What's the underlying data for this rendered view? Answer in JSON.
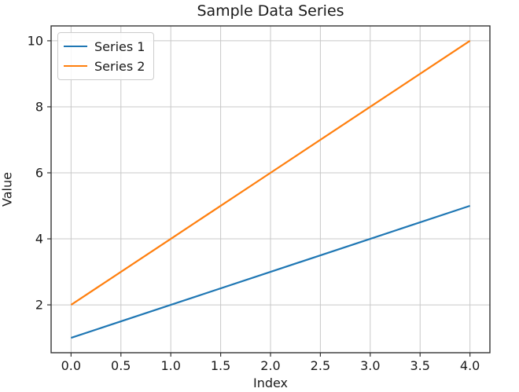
{
  "chart_data": {
    "type": "line",
    "title": "Sample Data Series",
    "xlabel": "Index",
    "ylabel": "Value",
    "x": [
      0,
      1,
      2,
      3,
      4
    ],
    "series": [
      {
        "name": "Series 1",
        "values": [
          1,
          2,
          3,
          4,
          5
        ],
        "color": "#1f77b4"
      },
      {
        "name": "Series 2",
        "values": [
          2,
          4,
          6,
          8,
          10
        ],
        "color": "#ff7f0e"
      }
    ],
    "xlim": [
      -0.2,
      4.2
    ],
    "ylim": [
      0.55,
      10.45
    ],
    "xticks": {
      "values": [
        0,
        0.5,
        1,
        1.5,
        2,
        2.5,
        3,
        3.5,
        4
      ],
      "labels": [
        "0.0",
        "0.5",
        "1.0",
        "1.5",
        "2.0",
        "2.5",
        "3.0",
        "3.5",
        "4.0"
      ]
    },
    "yticks": {
      "values": [
        2,
        4,
        6,
        8,
        10
      ],
      "labels": [
        "2",
        "4",
        "6",
        "8",
        "10"
      ]
    },
    "grid": true,
    "grid_color": "#c8c8c8",
    "spine_color": "#333333",
    "text_color": "#1a1a1a",
    "background": "#ffffff",
    "legend_position": "upper-left"
  }
}
